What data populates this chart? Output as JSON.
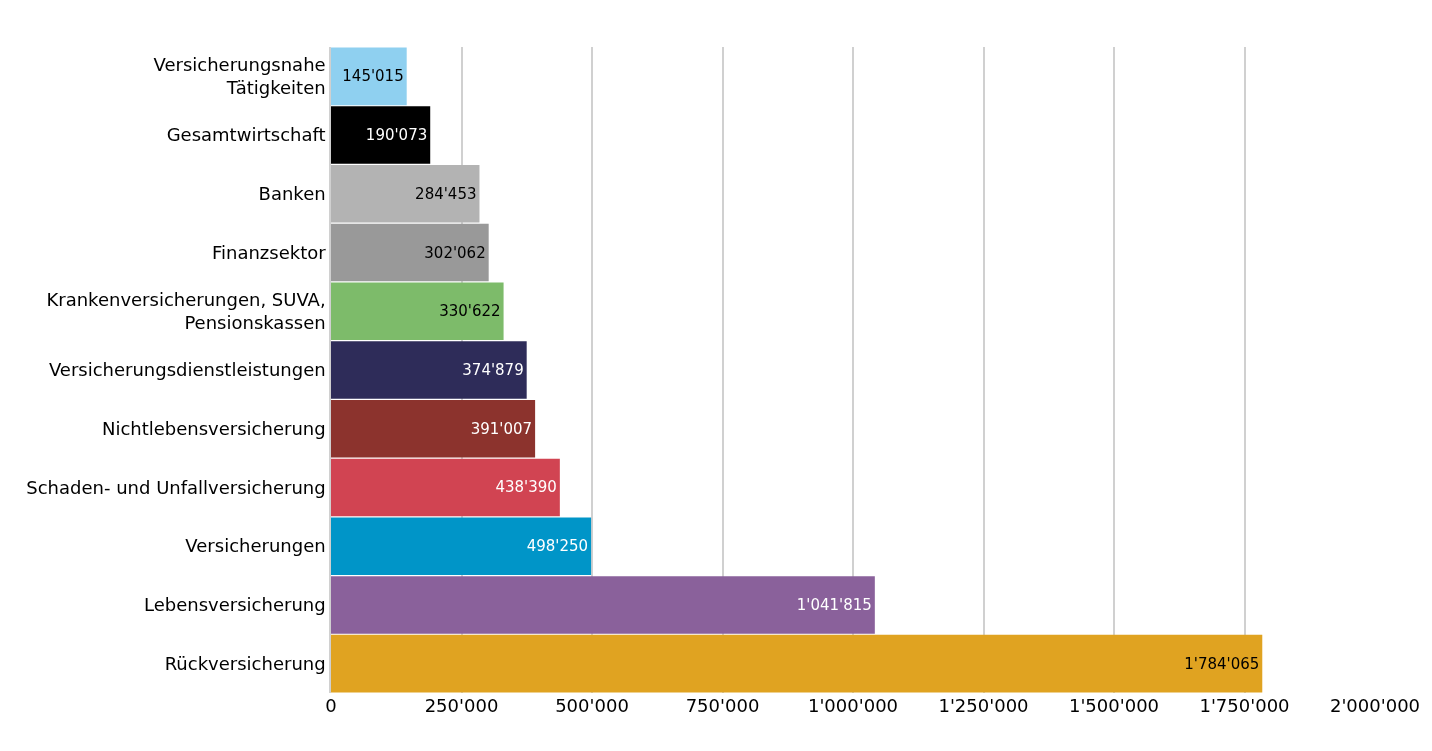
{
  "chart_data": {
    "type": "bar",
    "orientation": "horizontal",
    "categories": [
      "Versicherungsnahe\nTätigkeiten",
      "Gesamtwirtschaft",
      "Banken",
      "Finanzsektor",
      "Krankenversicherungen, SUVA,\nPensionskassen",
      "Versicherungsdienstleistungen",
      "Nichtlebensversicherung",
      "Schaden- und Unfallversicherung",
      "Versicherungen",
      "Lebensversicherung",
      "Rückversicherung"
    ],
    "values": [
      145015,
      190073,
      284453,
      302062,
      330622,
      374879,
      391007,
      438390,
      498250,
      1041815,
      1784065
    ],
    "value_labels": [
      "145'015",
      "190'073",
      "284'453",
      "302'062",
      "330'622",
      "374'879",
      "391'007",
      "438'390",
      "498'250",
      "1'041'815",
      "1'784'065"
    ],
    "colors": [
      "#8fd0f0",
      "#000000",
      "#b3b3b3",
      "#999999",
      "#7dbb6a",
      "#2e2c59",
      "#8c332d",
      "#d14452",
      "#0095c8",
      "#8a619b",
      "#e0a321"
    ],
    "xlim": [
      0,
      2000000
    ],
    "xticks": [
      0,
      {
        "value": 250000,
        "label": "250'000"
      },
      {
        "value": 500000,
        "label": "500'000"
      },
      {
        "value": 750000,
        "label": "750'000"
      },
      {
        "value": 1000000,
        "label": "1'000'000"
      },
      {
        "value": 1250000,
        "label": "1'250'000"
      },
      {
        "value": 1500000,
        "label": "1'500'000"
      },
      {
        "value": 1750000,
        "label": "1'750'000"
      },
      {
        "value": 2000000,
        "label": "2'000'000"
      }
    ],
    "grid": "x"
  }
}
